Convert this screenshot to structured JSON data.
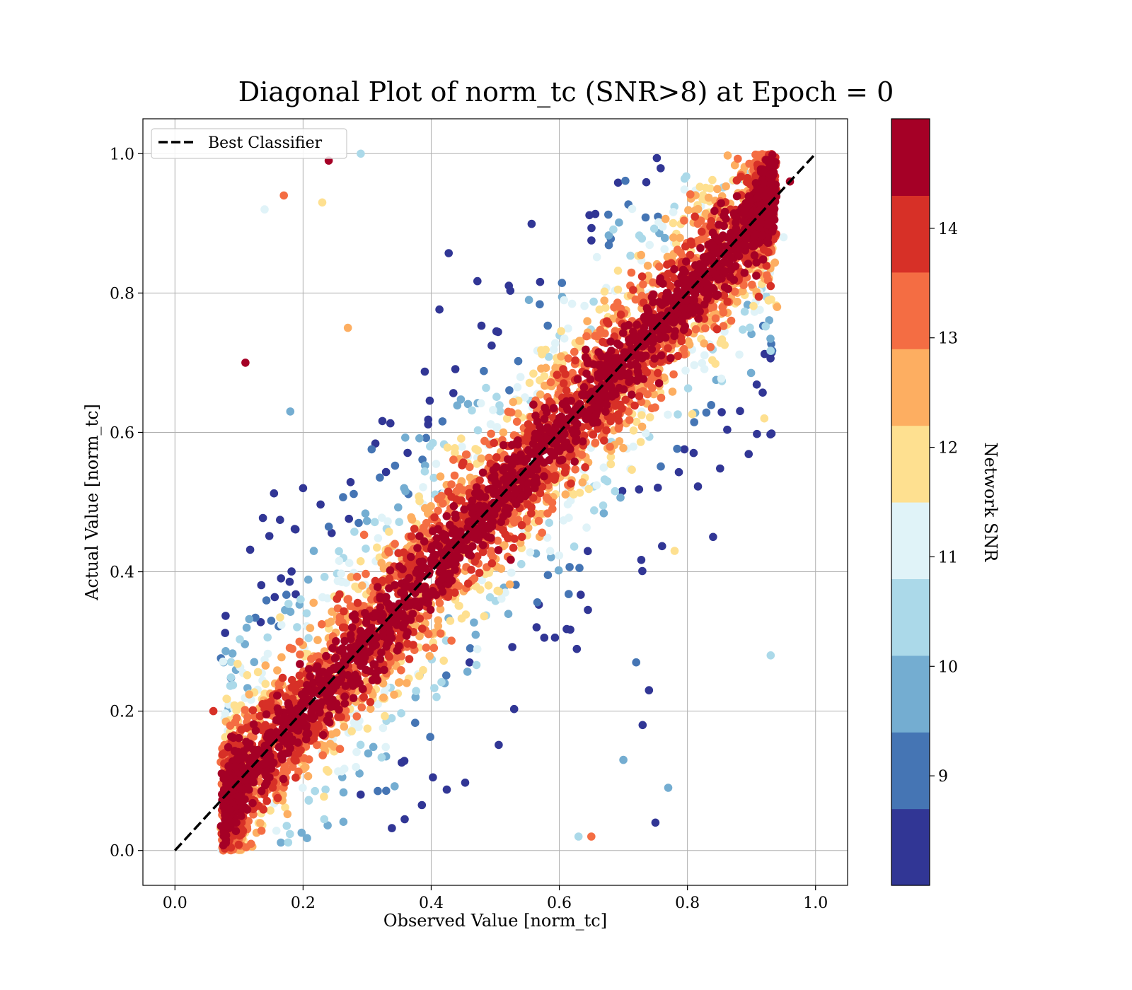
{
  "chart_data": {
    "type": "scatter",
    "title": "Diagonal Plot of norm_tc (SNR>8) at Epoch = 0",
    "xlabel": "Observed Value [norm_tc]",
    "ylabel": "Actual Value [norm_tc]",
    "xlim": [
      -0.05,
      1.05
    ],
    "ylim": [
      -0.05,
      1.05
    ],
    "x_ticks": [
      "0.0",
      "0.2",
      "0.4",
      "0.6",
      "0.8",
      "1.0"
    ],
    "y_ticks": [
      "0.0",
      "0.2",
      "0.4",
      "0.6",
      "0.8",
      "1.0"
    ],
    "grid": true,
    "legend": {
      "placement": "upper-left",
      "entries": [
        {
          "label": "Best Classifier",
          "style": "dashed",
          "color": "#000000"
        }
      ]
    },
    "reference_line": {
      "name": "Best Classifier",
      "x": [
        0.0,
        1.0
      ],
      "y": [
        0.0,
        1.0
      ],
      "style": "dashed",
      "color": "#000000"
    },
    "colorbar": {
      "label": "Network SNR",
      "range": [
        8.0,
        15.0
      ],
      "ticks": [
        "9",
        "10",
        "11",
        "12",
        "13",
        "14"
      ],
      "tick_values": [
        9,
        10,
        11,
        12,
        13,
        14
      ],
      "bands": [
        {
          "from": 8.0,
          "to": 8.7,
          "color": "#313695"
        },
        {
          "from": 8.7,
          "to": 9.4,
          "color": "#4575b4"
        },
        {
          "from": 9.4,
          "to": 10.1,
          "color": "#74add1"
        },
        {
          "from": 10.1,
          "to": 10.8,
          "color": "#abd9e9"
        },
        {
          "from": 10.8,
          "to": 11.5,
          "color": "#e0f3f8"
        },
        {
          "from": 11.5,
          "to": 12.2,
          "color": "#fee090"
        },
        {
          "from": 12.2,
          "to": 12.9,
          "color": "#fdae61"
        },
        {
          "from": 12.9,
          "to": 13.6,
          "color": "#f46d43"
        },
        {
          "from": 13.6,
          "to": 14.3,
          "color": "#d73027"
        },
        {
          "from": 14.3,
          "to": 15.0,
          "color": "#a50026"
        }
      ]
    },
    "series": [
      {
        "distribution": "dense band around y = x, bounded by observed ≈ 0.07–0.95 and actual 0.0–1.0; high-SNR (dark red) points concentrated near the diagonal, low-SNR (blue) points spread farther away",
        "points": [
          [
            0.93,
            0.28,
            10.3
          ],
          [
            0.75,
            0.04,
            8.3
          ],
          [
            0.77,
            0.09,
            9.8
          ],
          [
            0.24,
            0.99,
            14.6
          ],
          [
            0.17,
            0.94,
            13.3
          ],
          [
            0.11,
            0.7,
            14.6
          ],
          [
            0.14,
            0.92,
            11.2
          ],
          [
            0.23,
            0.93,
            12.0
          ],
          [
            0.29,
            1.0,
            10.6
          ],
          [
            0.06,
            0.2,
            14.0
          ],
          [
            0.84,
            0.45,
            8.3
          ],
          [
            0.78,
            0.43,
            12.0
          ],
          [
            0.72,
            0.27,
            9.0
          ],
          [
            0.74,
            0.23,
            8.3
          ],
          [
            0.73,
            0.18,
            8.3
          ],
          [
            0.7,
            0.13,
            9.8
          ],
          [
            0.63,
            0.02,
            10.3
          ],
          [
            0.65,
            0.02,
            13.3
          ],
          [
            0.94,
            0.78,
            12.6
          ],
          [
            0.93,
            0.81,
            14.0
          ],
          [
            0.95,
            0.88,
            11.2
          ],
          [
            0.96,
            0.96,
            14.6
          ],
          [
            0.92,
            0.62,
            11.8
          ],
          [
            0.2,
            0.52,
            8.3
          ],
          [
            0.18,
            0.63,
            9.8
          ],
          [
            0.27,
            0.75,
            12.6
          ]
        ]
      }
    ]
  }
}
